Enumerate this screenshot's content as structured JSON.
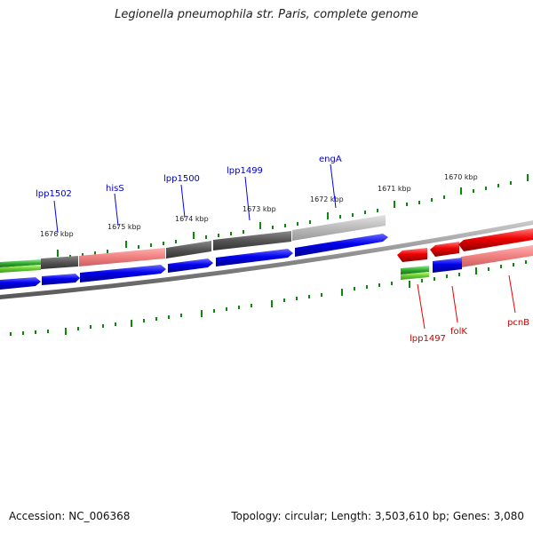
{
  "title": "Legionella pneumophila str. Paris, complete genome",
  "footer": {
    "accession": "Accession: NC_006368",
    "stats": "Topology: circular; Length: 3,503,610 bp; Genes: 3,080"
  },
  "colors": {
    "forward_gene": "#0000ee",
    "reverse_gene": "#ee0000",
    "forward_label": "#0000cc",
    "reverse_label": "#cc0000",
    "tick": "#0a8a0a",
    "backbone": "#808080",
    "cog_dark": "#555555",
    "cog_light": "#bbbbbb",
    "cog_pink": "#f08080",
    "cog_green": "#33aa33",
    "cog_lightgreen": "#66cc33"
  },
  "scale_labels": [
    "1676 kbp",
    "1675 kbp",
    "1674 kbp",
    "1673 kbp",
    "1672 kbp",
    "1671 kbp",
    "1670 kbp"
  ],
  "forward_labels": [
    "lpp1502",
    "hisS",
    "lpp1500",
    "lpp1499",
    "engA"
  ],
  "reverse_labels": [
    "lpp1497",
    "folK",
    "pcnB"
  ]
}
